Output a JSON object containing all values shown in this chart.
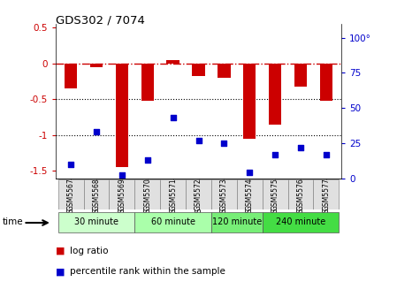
{
  "title": "GDS302 / 7074",
  "samples": [
    "GSM5567",
    "GSM5568",
    "GSM5569",
    "GSM5570",
    "GSM5571",
    "GSM5572",
    "GSM5573",
    "GSM5574",
    "GSM5575",
    "GSM5576",
    "GSM5577"
  ],
  "log_ratio": [
    -0.35,
    -0.05,
    -1.45,
    -0.52,
    0.04,
    -0.18,
    -0.2,
    -1.05,
    -0.85,
    -0.33,
    -0.52
  ],
  "percentile": [
    10,
    33,
    2,
    13,
    43,
    27,
    25,
    4,
    17,
    22,
    17
  ],
  "bar_color": "#cc0000",
  "dot_color": "#0000cc",
  "ylim_left": [
    -1.6,
    0.55
  ],
  "ylim_right": [
    0,
    110
  ],
  "left_yticks": [
    0.5,
    0.0,
    -0.5,
    -1.0,
    -1.5
  ],
  "left_yticklabels": [
    "0.5",
    "0",
    "-0.5",
    "-1",
    "-1.5"
  ],
  "right_yticks": [
    0,
    25,
    50,
    75,
    100
  ],
  "right_yticklabels": [
    "0",
    "25",
    "50",
    "75",
    "100°"
  ],
  "hline_dash": 0.0,
  "hlines_dot": [
    -0.5,
    -1.0
  ],
  "time_groups": [
    {
      "label": "30 minute",
      "start": 0,
      "end": 3,
      "color": "#ccffcc"
    },
    {
      "label": "60 minute",
      "start": 3,
      "end": 6,
      "color": "#aaffaa"
    },
    {
      "label": "120 minute",
      "start": 6,
      "end": 8,
      "color": "#77ee77"
    },
    {
      "label": "240 minute",
      "start": 8,
      "end": 11,
      "color": "#44dd44"
    }
  ],
  "xlabel_time": "time",
  "legend_log": "log ratio",
  "legend_pct": "percentile rank within the sample",
  "bar_width": 0.5
}
